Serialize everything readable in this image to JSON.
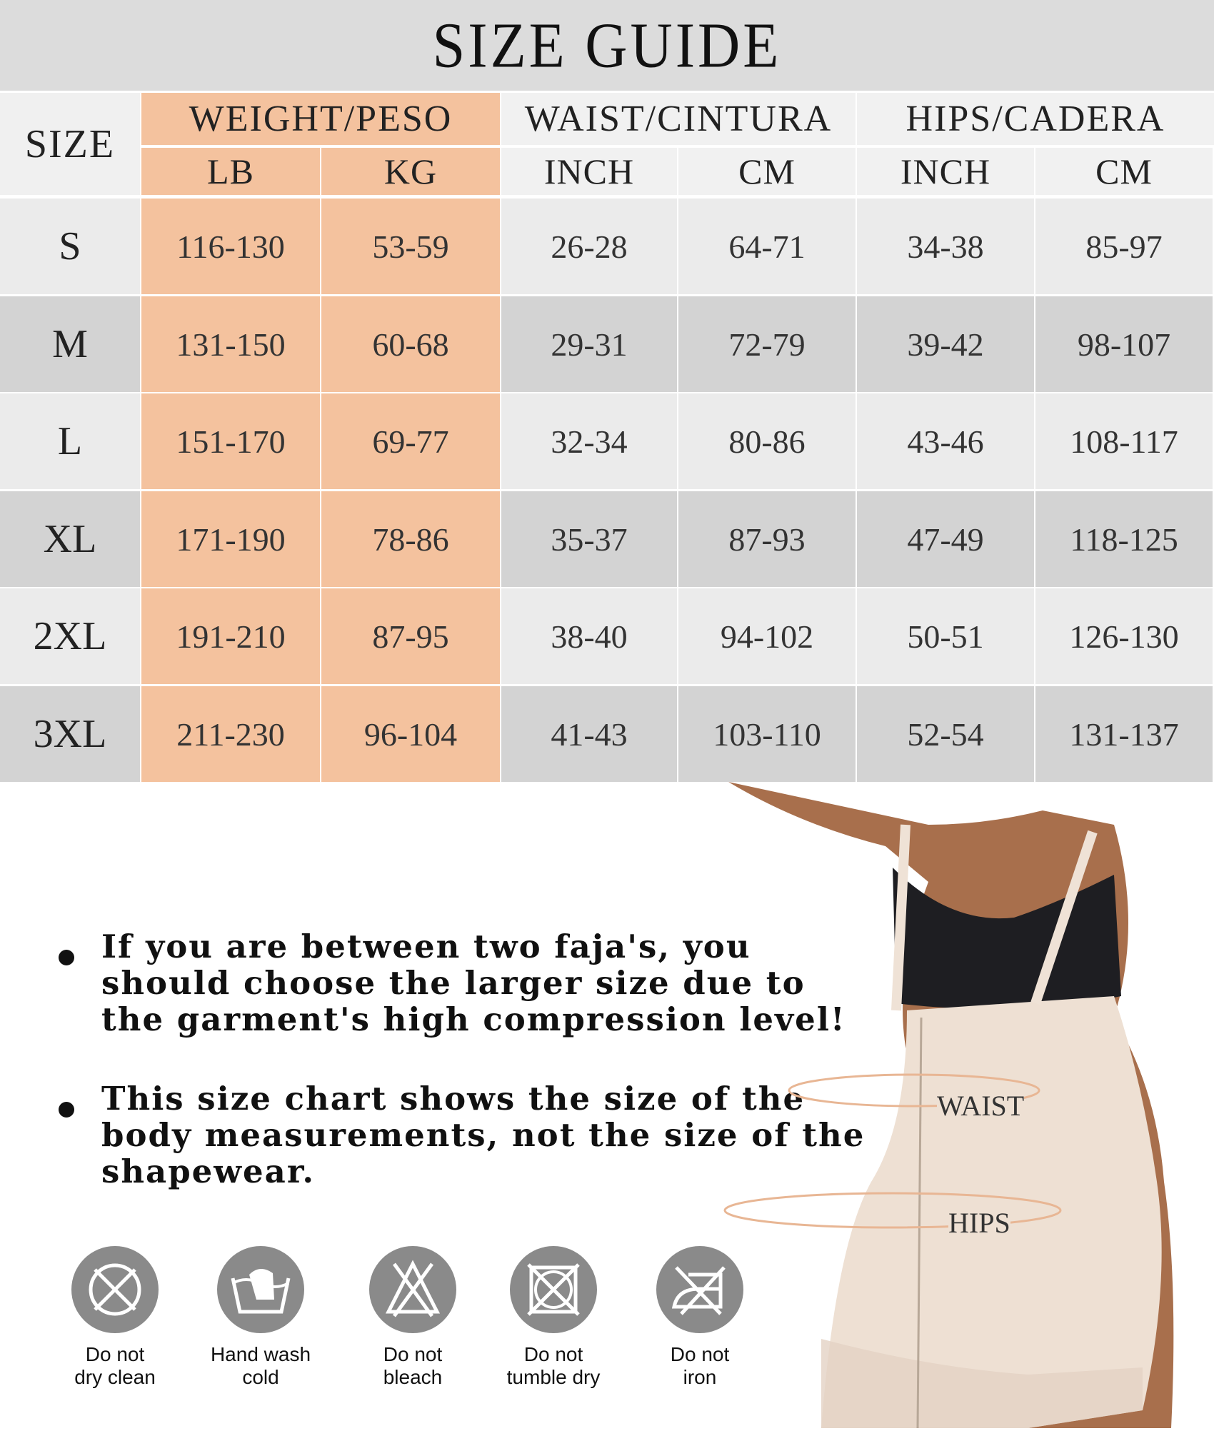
{
  "title": "SIZE GUIDE",
  "headers": {
    "size": "SIZE",
    "weight": "WEIGHT/PESO",
    "waist": "WAIST/CINTURA",
    "hips": "HIPS/CADERA",
    "units": [
      "LB",
      "KG",
      "INCH",
      "CM",
      "INCH",
      "CM"
    ]
  },
  "rows": [
    {
      "size": "S",
      "values": [
        "116-130",
        "53-59",
        "26-28",
        "64-71",
        "34-38",
        "85-97"
      ]
    },
    {
      "size": "M",
      "values": [
        "131-150",
        "60-68",
        "29-31",
        "72-79",
        "39-42",
        "98-107"
      ]
    },
    {
      "size": "L",
      "values": [
        "151-170",
        "69-77",
        "32-34",
        "80-86",
        "43-46",
        "108-117"
      ]
    },
    {
      "size": "XL",
      "values": [
        "171-190",
        "78-86",
        "35-37",
        "87-93",
        "47-49",
        "118-125"
      ]
    },
    {
      "size": "2XL",
      "values": [
        "191-210",
        "87-95",
        "38-40",
        "94-102",
        "50-51",
        "126-130"
      ]
    },
    {
      "size": "3XL",
      "values": [
        "211-230",
        "96-104",
        "41-43",
        "103-110",
        "52-54",
        "131-137"
      ]
    }
  ],
  "notes": [
    "If you are between two faja's, you should choose the larger size due to the garment's high compression level!",
    "This size chart shows the size of the body measurements, not the size of the shapewear."
  ],
  "care": [
    {
      "icon": "do-not-dry-clean-icon",
      "line1": "Do not",
      "line2": "dry clean"
    },
    {
      "icon": "hand-wash-icon",
      "line1": "Hand wash",
      "line2": "cold"
    },
    {
      "icon": "do-not-bleach-icon",
      "line1": "Do not",
      "line2": "bleach"
    },
    {
      "icon": "do-not-tumble-dry-icon",
      "line1": "Do not",
      "line2": "tumble dry"
    },
    {
      "icon": "do-not-iron-icon",
      "line1": "Do not",
      "line2": "iron"
    }
  ],
  "model": {
    "waist_label": "WAIST",
    "hips_label": "HIPS"
  },
  "colors": {
    "weight_column": "#f4c29e",
    "row_light": "#ebebeb",
    "row_dark": "#d3d3d3",
    "header_bg": "#dcdcdc",
    "icon_gray": "#8a8a8a"
  }
}
